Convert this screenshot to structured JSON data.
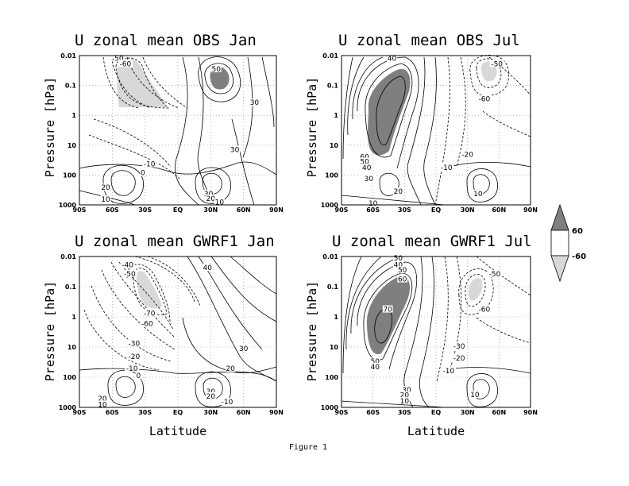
{
  "figure_caption": "Figure 1",
  "chart_data": [
    {
      "type": "contour",
      "title": "U zonal mean OBS Jan",
      "xlabel": "",
      "ylabel": "Pressure [hPa]",
      "x_ticks": [
        "90S",
        "60S",
        "30S",
        "EQ",
        "30N",
        "60N",
        "90N"
      ],
      "y_ticks": [
        "0.01",
        "0.1",
        "1",
        "10",
        "100",
        "1000"
      ],
      "ylim_hPa": [
        1000,
        0.01
      ],
      "y_scale": "log",
      "grid": true,
      "contour_labels": [
        {
          "text": "-50",
          "lat": -55,
          "p": 0.013
        },
        {
          "text": "-60",
          "lat": -48,
          "p": 0.02
        },
        {
          "text": "50",
          "lat": 35,
          "p": 0.03
        },
        {
          "text": "30",
          "lat": 70,
          "p": 0.4
        },
        {
          "text": "-10",
          "lat": -26,
          "p": 45
        },
        {
          "text": "0",
          "lat": -32,
          "p": 90
        },
        {
          "text": "30",
          "lat": 52,
          "p": 15
        },
        {
          "text": "20",
          "lat": -66,
          "p": 280
        },
        {
          "text": "10",
          "lat": -66,
          "p": 700
        },
        {
          "text": "30",
          "lat": 28,
          "p": 450
        },
        {
          "text": "20",
          "lat": 30,
          "p": 650
        },
        {
          "text": "10",
          "lat": 38,
          "p": 850
        }
      ]
    },
    {
      "type": "contour",
      "title": "U zonal mean OBS Jul",
      "xlabel": "",
      "ylabel": "Pressure [hPa]",
      "x_ticks": [
        "90S",
        "60S",
        "30S",
        "EQ",
        "30N",
        "60N",
        "90N"
      ],
      "y_ticks": [
        "0.01",
        "0.1",
        "1",
        "10",
        "100",
        "1000"
      ],
      "ylim_hPa": [
        1000,
        0.01
      ],
      "y_scale": "log",
      "grid": true,
      "contour_labels": [
        {
          "text": "40",
          "lat": -42,
          "p": 0.013
        },
        {
          "text": "-50",
          "lat": 58,
          "p": 0.02
        },
        {
          "text": "-60",
          "lat": 46,
          "p": 0.3
        },
        {
          "text": "60",
          "lat": -68,
          "p": 26
        },
        {
          "text": "50",
          "lat": -68,
          "p": 38
        },
        {
          "text": "40",
          "lat": -66,
          "p": 60
        },
        {
          "text": "30",
          "lat": -64,
          "p": 140
        },
        {
          "text": "20",
          "lat": -36,
          "p": 380
        },
        {
          "text": "-20",
          "lat": 30,
          "p": 22
        },
        {
          "text": "-10",
          "lat": 10,
          "p": 60
        },
        {
          "text": "10",
          "lat": 40,
          "p": 450
        },
        {
          "text": "10",
          "lat": -60,
          "p": 950
        }
      ]
    },
    {
      "type": "contour",
      "title": "U zonal mean GWRF1 Jan",
      "xlabel": "",
      "ylabel": "",
      "x_ticks": [
        "90S",
        "60S",
        "30S",
        "EQ",
        "30N",
        "60N",
        "90N"
      ],
      "y_ticks": [
        "0.01",
        "0.1",
        "1",
        "10",
        "100",
        "1000"
      ],
      "ylim_hPa": [
        1000,
        0.01
      ],
      "y_scale": "log",
      "grid": true,
      "contour_labels": [
        {
          "text": "-40",
          "lat": -46,
          "p": 0.02
        },
        {
          "text": "-50",
          "lat": -44,
          "p": 0.04
        },
        {
          "text": "40",
          "lat": 27,
          "p": 0.025
        },
        {
          "text": "-70",
          "lat": -26,
          "p": 0.8
        },
        {
          "text": "-60",
          "lat": -28,
          "p": 1.8
        },
        {
          "text": "-30",
          "lat": -40,
          "p": 8
        },
        {
          "text": "-20",
          "lat": -40,
          "p": 22
        },
        {
          "text": "-10",
          "lat": -42,
          "p": 55
        },
        {
          "text": "0",
          "lat": -36,
          "p": 95
        },
        {
          "text": "30",
          "lat": 60,
          "p": 12
        },
        {
          "text": "20",
          "lat": 48,
          "p": 55
        },
        {
          "text": "20",
          "lat": -69,
          "p": 550
        },
        {
          "text": "10",
          "lat": -69,
          "p": 850
        },
        {
          "text": "30",
          "lat": 30,
          "p": 320
        },
        {
          "text": "20",
          "lat": 30,
          "p": 450
        },
        {
          "text": "-10",
          "lat": 45,
          "p": 700
        }
      ]
    },
    {
      "type": "contour",
      "title": "U zonal mean GWRF1 Jul",
      "xlabel": "",
      "ylabel": "",
      "x_ticks": [
        "90S",
        "60S",
        "30S",
        "EQ",
        "30N",
        "60N",
        "90N"
      ],
      "y_ticks": [
        "0.01",
        "0.1",
        "1",
        "10",
        "100",
        "1000"
      ],
      "ylim_hPa": [
        1000,
        0.01
      ],
      "y_scale": "log",
      "grid": true,
      "contour_labels": [
        {
          "text": "50",
          "lat": -36,
          "p": 0.012
        },
        {
          "text": "40",
          "lat": -36,
          "p": 0.02
        },
        {
          "text": "50",
          "lat": -32,
          "p": 0.03
        },
        {
          "text": "60",
          "lat": -32,
          "p": 0.06
        },
        {
          "text": "70",
          "lat": -46,
          "p": 0.6
        },
        {
          "text": "-50",
          "lat": 56,
          "p": 0.04
        },
        {
          "text": "-60",
          "lat": 46,
          "p": 0.6
        },
        {
          "text": "-30",
          "lat": 22,
          "p": 10
        },
        {
          "text": "-20",
          "lat": 22,
          "p": 25
        },
        {
          "text": "-10",
          "lat": 12,
          "p": 65
        },
        {
          "text": "50",
          "lat": -58,
          "p": 32
        },
        {
          "text": "40",
          "lat": -58,
          "p": 48
        },
        {
          "text": "10",
          "lat": 37,
          "p": 400
        },
        {
          "text": "30",
          "lat": -28,
          "p": 280
        },
        {
          "text": "20",
          "lat": -30,
          "p": 420
        },
        {
          "text": "10",
          "lat": -30,
          "p": 650
        }
      ]
    }
  ],
  "shared_xlabel": "Latitude",
  "legend": {
    "upper_label": "60",
    "lower_label": "-60",
    "upper_color": "#7f7f7f",
    "lower_color": "#d8d8d8"
  },
  "colors": {
    "strong_positive_fill": "#7f7f7f",
    "strong_negative_fill": "#d8d8d8",
    "line": "#000000",
    "grid": "#888888"
  }
}
